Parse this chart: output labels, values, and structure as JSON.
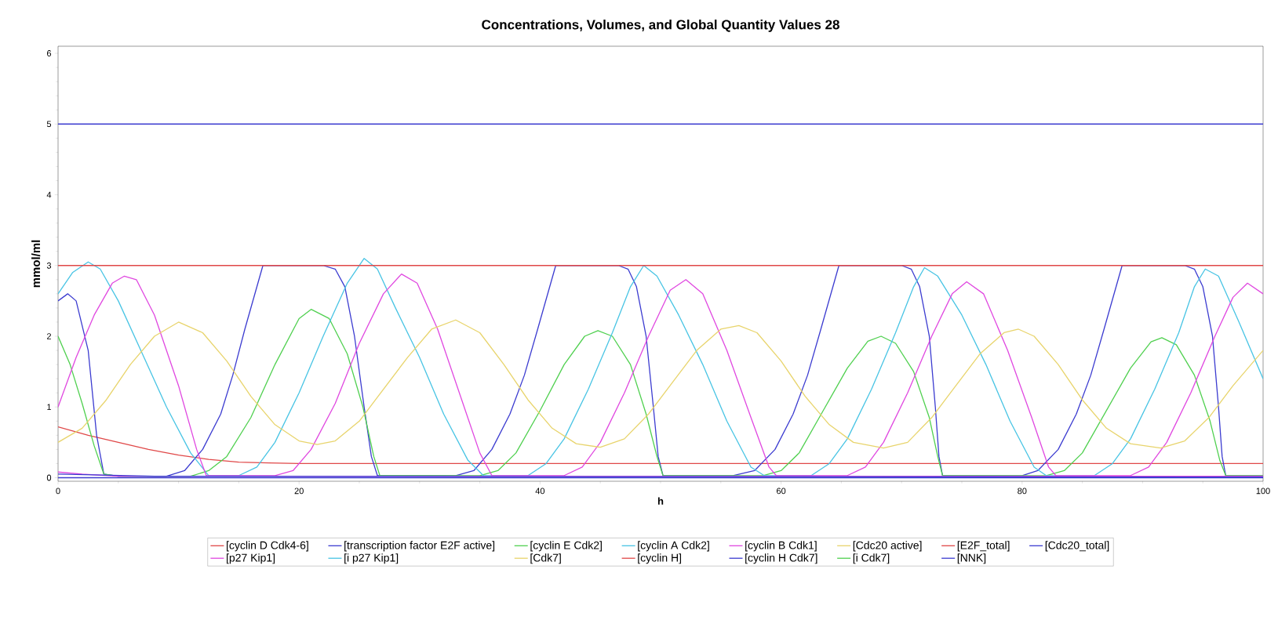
{
  "chart_data": {
    "type": "line",
    "title": "Concentrations, Volumes, and Global Quantity Values 28",
    "xlabel": "h",
    "ylabel": "mmol/ml",
    "xlim": [
      0,
      100
    ],
    "ylim": [
      -0.05,
      6.1
    ],
    "xticks": [
      0,
      20,
      40,
      60,
      80,
      100
    ],
    "yticks": [
      0,
      1,
      2,
      3,
      4,
      5,
      6
    ],
    "legend": "bottom",
    "series": [
      {
        "name": "[cyclin D Cdk4-6]",
        "color": "#e04848",
        "x": [
          0,
          2.5,
          5,
          7.5,
          10,
          12.5,
          15,
          17.5,
          20,
          100
        ],
        "values": [
          0.72,
          0.6,
          0.5,
          0.4,
          0.32,
          0.26,
          0.22,
          0.21,
          0.2,
          0.2
        ]
      },
      {
        "name": "[transcription factor E2F active]",
        "color": "#3c3cd0",
        "x": [
          0,
          0.8,
          1.5,
          2.5,
          3.2,
          3.8,
          5,
          9,
          10.5,
          12,
          13.5,
          14.5,
          15.5,
          17,
          22,
          23,
          23.8,
          24.6,
          25.4,
          26,
          26.5,
          33,
          34.5,
          36,
          37.5,
          38.7,
          39.8,
          41.3,
          46.5,
          47.3,
          48,
          48.8,
          49.4,
          49.8,
          50.2,
          56,
          57.8,
          59.5,
          61,
          62.2,
          63.3,
          64.8,
          70,
          70.8,
          71.5,
          72.3,
          72.8,
          73.1,
          73.4,
          80,
          81.3,
          83,
          84.5,
          85.7,
          86.8,
          88.3,
          93.5,
          94.3,
          95,
          95.8,
          96.3,
          96.6,
          96.9,
          100
        ],
        "values": [
          2.5,
          2.6,
          2.5,
          1.8,
          0.6,
          0.05,
          0.02,
          0.02,
          0.1,
          0.4,
          0.9,
          1.45,
          2.1,
          3.0,
          3.0,
          2.95,
          2.7,
          2.0,
          1.0,
          0.3,
          0.03,
          0.03,
          0.1,
          0.4,
          0.9,
          1.45,
          2.1,
          3.0,
          3.0,
          2.95,
          2.7,
          2.0,
          1.0,
          0.3,
          0.03,
          0.03,
          0.1,
          0.4,
          0.9,
          1.45,
          2.1,
          3.0,
          3.0,
          2.95,
          2.7,
          2.0,
          1.0,
          0.3,
          0.03,
          0.03,
          0.1,
          0.4,
          0.9,
          1.45,
          2.1,
          3.0,
          3.0,
          2.95,
          2.7,
          2.0,
          1.0,
          0.3,
          0.03,
          0.03
        ]
      },
      {
        "name": "[cyclin E Cdk2]",
        "color": "#50d050",
        "x": [
          0,
          1,
          2,
          3,
          3.8,
          5,
          11,
          12.5,
          14,
          16,
          18,
          20,
          21,
          22.5,
          24,
          25.3,
          26.2,
          26.7,
          35,
          36.5,
          38,
          40,
          42,
          43.7,
          44.8,
          46,
          47.5,
          48.8,
          49.7,
          50.2,
          58.5,
          60,
          61.5,
          63.5,
          65.5,
          67.2,
          68.3,
          69.5,
          71,
          72.3,
          73,
          73.4,
          82,
          83.5,
          85,
          87,
          89,
          90.7,
          91.6,
          92.8,
          94.3,
          95.6,
          96.4,
          96.9,
          100
        ],
        "values": [
          2.0,
          1.6,
          1.05,
          0.45,
          0.05,
          0.02,
          0.02,
          0.1,
          0.3,
          0.85,
          1.6,
          2.25,
          2.38,
          2.25,
          1.75,
          1.0,
          0.3,
          0.03,
          0.03,
          0.1,
          0.35,
          0.95,
          1.6,
          2.0,
          2.08,
          2.0,
          1.6,
          0.9,
          0.3,
          0.03,
          0.03,
          0.1,
          0.35,
          0.95,
          1.55,
          1.93,
          2.0,
          1.9,
          1.5,
          0.85,
          0.3,
          0.03,
          0.03,
          0.1,
          0.35,
          0.95,
          1.55,
          1.92,
          1.98,
          1.88,
          1.45,
          0.8,
          0.25,
          0.03,
          0.03
        ]
      },
      {
        "name": "[cyclin A Cdk2]",
        "color": "#48c4e4",
        "x": [
          0,
          1.2,
          2.5,
          3.5,
          5,
          7,
          9,
          11,
          12.5,
          15,
          16.5,
          18,
          20,
          22,
          24,
          25.4,
          26.5,
          28,
          30,
          32,
          34,
          35.3,
          39,
          40.5,
          42,
          44,
          46,
          47.5,
          48.6,
          49.7,
          51.5,
          53.5,
          55.5,
          57.5,
          58.6,
          62.5,
          64,
          65.5,
          67.5,
          69.5,
          71,
          71.9,
          73,
          75,
          77,
          79,
          81,
          82,
          86,
          87.5,
          89,
          91,
          93,
          94.3,
          95.2,
          96.3,
          98,
          100
        ],
        "values": [
          2.6,
          2.9,
          3.05,
          2.95,
          2.5,
          1.75,
          1.0,
          0.35,
          0.03,
          0.03,
          0.15,
          0.5,
          1.2,
          2.0,
          2.75,
          3.1,
          2.95,
          2.4,
          1.7,
          0.9,
          0.25,
          0.03,
          0.03,
          0.2,
          0.55,
          1.25,
          2.05,
          2.7,
          3.0,
          2.85,
          2.3,
          1.6,
          0.8,
          0.15,
          0.03,
          0.03,
          0.2,
          0.55,
          1.25,
          2.05,
          2.7,
          2.97,
          2.85,
          2.3,
          1.6,
          0.8,
          0.15,
          0.03,
          0.03,
          0.2,
          0.55,
          1.25,
          2.05,
          2.7,
          2.95,
          2.85,
          2.2,
          1.4
        ]
      },
      {
        "name": "[cyclin B Cdk1]",
        "color": "#e048e0",
        "x": [
          0,
          1.5,
          3,
          4.5,
          5.5,
          6.5,
          8,
          10,
          11.5,
          12.3,
          18,
          19.5,
          21,
          23,
          25,
          27,
          28.5,
          29.8,
          31.5,
          33.5,
          35,
          36,
          42,
          43.5,
          45,
          47,
          49,
          50.8,
          52.1,
          53.5,
          55.5,
          57.5,
          59,
          59.6,
          65.5,
          67,
          68.5,
          70.5,
          72.5,
          74.2,
          75.4,
          76.8,
          78.8,
          80.8,
          82.2,
          82.8,
          89,
          90.5,
          92,
          94,
          96,
          97.5,
          98.7,
          100
        ],
        "values": [
          1.0,
          1.7,
          2.3,
          2.75,
          2.85,
          2.8,
          2.3,
          1.3,
          0.4,
          0.03,
          0.03,
          0.1,
          0.4,
          1.05,
          1.9,
          2.6,
          2.88,
          2.75,
          2.1,
          1.1,
          0.35,
          0.03,
          0.03,
          0.15,
          0.5,
          1.2,
          2.0,
          2.65,
          2.8,
          2.6,
          1.8,
          0.85,
          0.15,
          0.03,
          0.03,
          0.15,
          0.5,
          1.2,
          2.0,
          2.6,
          2.77,
          2.6,
          1.8,
          0.85,
          0.15,
          0.03,
          0.03,
          0.15,
          0.5,
          1.2,
          2.0,
          2.55,
          2.75,
          2.6
        ]
      },
      {
        "name": "[Cdc20 active]",
        "color": "#e8d46c",
        "x": [
          0,
          2,
          4,
          6,
          8,
          10,
          12,
          14,
          16,
          18,
          20,
          21.5,
          23,
          25,
          27,
          29,
          31,
          33,
          35,
          37,
          39,
          41,
          43,
          45,
          47,
          49,
          51,
          53,
          55,
          56.5,
          58,
          60,
          62,
          64,
          66,
          68.5,
          70.5,
          72.5,
          74.5,
          76.5,
          78.5,
          79.7,
          81,
          83,
          85,
          87,
          89,
          91.5,
          93.5,
          95.5,
          97.5,
          100
        ],
        "values": [
          0.5,
          0.7,
          1.1,
          1.6,
          2.0,
          2.2,
          2.05,
          1.65,
          1.15,
          0.75,
          0.52,
          0.47,
          0.52,
          0.8,
          1.25,
          1.7,
          2.1,
          2.23,
          2.05,
          1.6,
          1.1,
          0.7,
          0.48,
          0.43,
          0.55,
          0.9,
          1.35,
          1.8,
          2.1,
          2.15,
          2.05,
          1.65,
          1.15,
          0.75,
          0.5,
          0.42,
          0.5,
          0.85,
          1.3,
          1.75,
          2.05,
          2.1,
          2.0,
          1.6,
          1.1,
          0.7,
          0.48,
          0.42,
          0.52,
          0.85,
          1.3,
          1.8
        ]
      },
      {
        "name": "[E2F_total]",
        "color": "#e04848",
        "x": [
          0,
          100
        ],
        "values": [
          3.0,
          3.0
        ]
      },
      {
        "name": "[Cdc20_total]",
        "color": "#3c3cd0",
        "x": [
          0,
          100
        ],
        "values": [
          5.0,
          5.0
        ]
      },
      {
        "name": "[p27 Kip1]",
        "color": "#e048e0",
        "x": [
          0,
          2,
          5,
          100
        ],
        "values": [
          0.08,
          0.05,
          0.02,
          0.02
        ]
      },
      {
        "name": "[i p27 Kip1]",
        "color": "#48c4e4",
        "values": [
          null
        ]
      },
      {
        "name": "[Cdk7]",
        "color": "#e8d46c",
        "values": [
          null
        ]
      },
      {
        "name": "[cyclin H]",
        "color": "#e04848",
        "values": [
          null
        ]
      },
      {
        "name": "[cyclin H Cdk7]",
        "color": "#3c3cd0",
        "x": [
          0,
          3,
          8,
          100
        ],
        "values": [
          0.05,
          0.04,
          0.02,
          0.01
        ]
      },
      {
        "name": "[i Cdk7]",
        "color": "#50d050",
        "values": [
          null
        ]
      },
      {
        "name": "[NNK]",
        "color": "#3c3cd0",
        "x": [
          0,
          100
        ],
        "values": [
          0.0,
          0.0
        ]
      }
    ]
  }
}
